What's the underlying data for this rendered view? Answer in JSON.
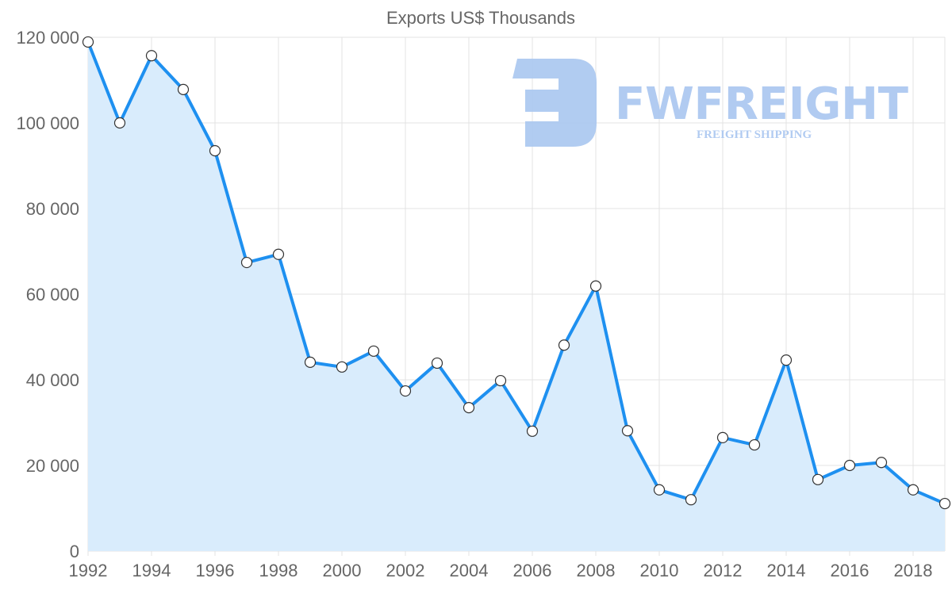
{
  "chart_data": {
    "type": "line",
    "title": "Exports US$ Thousands",
    "xlabel": "",
    "ylabel": "",
    "x": [
      1992,
      1993,
      1994,
      1995,
      1996,
      1997,
      1998,
      1999,
      2000,
      2001,
      2002,
      2003,
      2004,
      2005,
      2006,
      2007,
      2008,
      2009,
      2010,
      2011,
      2012,
      2013,
      2014,
      2015,
      2016,
      2017,
      2018,
      2019
    ],
    "series": [
      {
        "name": "Exports US$ Thousands",
        "values": [
          118900,
          100000,
          115700,
          107800,
          93500,
          67400,
          69300,
          44100,
          43000,
          46700,
          37400,
          43900,
          33500,
          39800,
          28000,
          48100,
          61900,
          28100,
          14300,
          12000,
          26500,
          24800,
          44600,
          16700,
          20000,
          20700,
          14300,
          11100
        ]
      }
    ],
    "x_ticks": [
      "1992",
      "1994",
      "1996",
      "1998",
      "2000",
      "2002",
      "2004",
      "2006",
      "2008",
      "2010",
      "2012",
      "2014",
      "2016",
      "2018"
    ],
    "y_ticks": [
      "0",
      "20 000",
      "40 000",
      "60 000",
      "80 000",
      "100 000",
      "120 000"
    ],
    "xlim": [
      1992,
      2019
    ],
    "ylim": [
      0,
      120000
    ],
    "grid": true,
    "fill_area": true,
    "colors": {
      "line": "#1e90f0",
      "fill": "#d9ecfc",
      "grid": "#e3e3e3",
      "watermark": "#a9c6f0"
    },
    "watermark": {
      "brand": "FWFREIGHT",
      "tagline": "FREIGHT SHIPPING"
    }
  }
}
